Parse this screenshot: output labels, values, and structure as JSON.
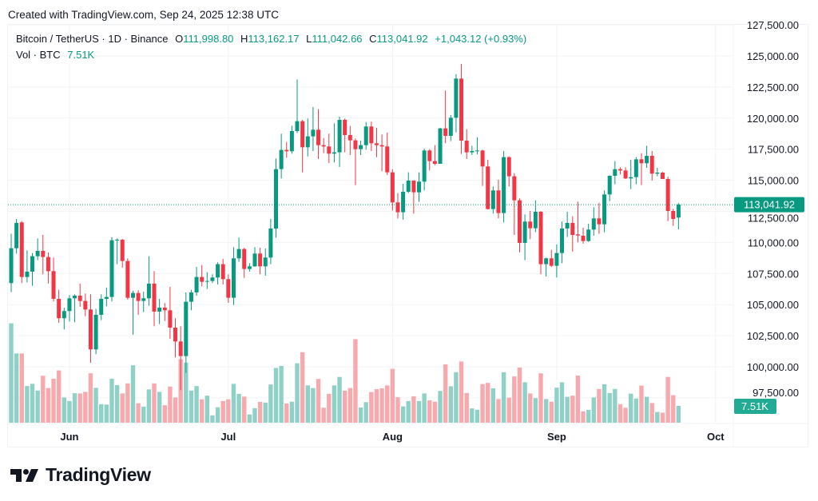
{
  "header": {
    "created": "Created with TradingView.com, Sep 24, 2025 12:38 UTC",
    "symbol": "Bitcoin / TetherUS · 1D · Binance",
    "open_label": "O",
    "open": "111,998.80",
    "high_label": "H",
    "high": "113,162.17",
    "low_label": "L",
    "low": "111,042.66",
    "close_label": "C",
    "close": "113,041.92",
    "change": "+1,043.12 (+0.93%)",
    "vol_label": "Vol · BTC",
    "vol": "7.51K"
  },
  "logo": {
    "text": "TradingView"
  },
  "colors": {
    "up": "#089981",
    "down": "#F23645",
    "up_volume": "#8fd1c6",
    "down_volume": "#f7a9ad",
    "text": "#131722",
    "grid": "#f2f3f5"
  },
  "chart_data": {
    "type": "candlestick",
    "title": "",
    "y_axis": {
      "position": "right",
      "range": [
        96500,
        127500
      ],
      "ticks": [
        "127,500.00",
        "125,000.00",
        "122,500.00",
        "120,000.00",
        "117,500.00",
        "115,000.00",
        "112,500.00",
        "110,000.00",
        "107,500.00",
        "105,000.00",
        "102,500.00",
        "100,000.00",
        "97,500.00"
      ],
      "tick_values": [
        127500,
        125000,
        122500,
        120000,
        117500,
        115000,
        112500,
        110000,
        107500,
        105000,
        102500,
        100000,
        97500
      ]
    },
    "x_axis": {
      "ticks": [
        {
          "label": "Jun",
          "date": "2025-06-01"
        },
        {
          "label": "Jul",
          "date": "2025-07-01"
        },
        {
          "label": "Aug",
          "date": "2025-08-01"
        },
        {
          "label": "Sep",
          "date": "2025-09-01"
        },
        {
          "label": "Oct",
          "date": "2025-10-01"
        }
      ]
    },
    "grid": true,
    "last_price_label": "113,041.92",
    "last_volume_label": "7.51K",
    "volume_unit": "K BTC",
    "columns": [
      "date",
      "open",
      "high",
      "low",
      "close",
      "volume"
    ],
    "candles": [
      [
        "2025-05-21",
        106728,
        110712,
        106000,
        109534,
        44.5
      ],
      [
        "2025-05-22",
        109534,
        111890,
        109106,
        111569,
        31.0
      ],
      [
        "2025-05-23",
        111612,
        111719,
        106728,
        107221,
        31.0
      ],
      [
        "2025-05-24",
        107221,
        109363,
        106793,
        107650,
        16.4
      ],
      [
        "2025-05-25",
        107650,
        109149,
        106514,
        108892,
        17.4
      ],
      [
        "2025-05-26",
        108892,
        110327,
        108571,
        109320,
        14.4
      ],
      [
        "2025-05-27",
        109320,
        110606,
        107436,
        108828,
        21.0
      ],
      [
        "2025-05-28",
        108828,
        109192,
        106686,
        107693,
        15.5
      ],
      [
        "2025-05-29",
        107693,
        108785,
        105250,
        105465,
        19.7
      ],
      [
        "2025-05-30",
        105465,
        106193,
        103536,
        103901,
        23.4
      ],
      [
        "2025-05-31",
        103901,
        104757,
        103001,
        104479,
        11.3
      ],
      [
        "2025-06-01",
        104479,
        105764,
        103644,
        105507,
        9.7
      ],
      [
        "2025-06-02",
        105507,
        105829,
        103579,
        105721,
        13.2
      ],
      [
        "2025-06-03",
        105721,
        106686,
        104822,
        105293,
        13.1
      ],
      [
        "2025-06-04",
        105293,
        105893,
        104072,
        104607,
        13.8
      ],
      [
        "2025-06-05",
        104607,
        105829,
        100324,
        101395,
        22.1
      ],
      [
        "2025-06-06",
        101395,
        104650,
        101009,
        104179,
        15.6
      ],
      [
        "2025-06-07",
        104179,
        105829,
        103751,
        105465,
        8.3
      ],
      [
        "2025-06-08",
        105465,
        106364,
        104865,
        105614,
        8.1
      ],
      [
        "2025-06-09",
        105614,
        110434,
        105250,
        110177,
        19.7
      ],
      [
        "2025-06-10",
        110177,
        110327,
        108250,
        110220,
        16.8
      ],
      [
        "2025-06-11",
        110220,
        110284,
        107971,
        108506,
        13.1
      ],
      [
        "2025-06-12",
        108506,
        108721,
        105400,
        105550,
        17.6
      ],
      [
        "2025-06-13",
        105550,
        106107,
        102573,
        105936,
        25.7
      ],
      [
        "2025-06-14",
        105936,
        106150,
        104179,
        105293,
        8.7
      ],
      [
        "2025-06-15",
        105293,
        106043,
        104393,
        105507,
        7.2
      ],
      [
        "2025-06-16",
        105507,
        108892,
        104907,
        106686,
        14.9
      ],
      [
        "2025-06-17",
        106686,
        107693,
        103258,
        104436,
        17.6
      ],
      [
        "2025-06-18",
        104436,
        105465,
        103430,
        104757,
        13.8
      ],
      [
        "2025-06-19",
        104757,
        105122,
        103687,
        104543,
        7.8
      ],
      [
        "2025-06-20",
        104543,
        106428,
        102251,
        103151,
        16.2
      ],
      [
        "2025-06-21",
        103151,
        103901,
        100752,
        102037,
        11.3
      ],
      [
        "2025-06-22",
        102037,
        103258,
        98117,
        100860,
        28.4
      ],
      [
        "2025-06-23",
        100860,
        105979,
        99510,
        105229,
        26.9
      ],
      [
        "2025-06-24",
        105229,
        106193,
        104543,
        105979,
        14.4
      ],
      [
        "2025-06-25",
        105979,
        108035,
        105722,
        107221,
        16.4
      ],
      [
        "2025-06-26",
        107221,
        108185,
        106471,
        106835,
        10.5
      ],
      [
        "2025-06-27",
        106835,
        107607,
        106257,
        106900,
        12.1
      ],
      [
        "2025-06-28",
        106900,
        107436,
        106728,
        107178,
        3.3
      ],
      [
        "2025-06-29",
        107178,
        108400,
        106621,
        108250,
        6.9
      ],
      [
        "2025-06-30",
        108250,
        108678,
        106621,
        107050,
        9.7
      ],
      [
        "2025-07-01",
        107050,
        107436,
        105143,
        105550,
        10.5
      ],
      [
        "2025-07-02",
        105550,
        109620,
        104971,
        108721,
        17.4
      ],
      [
        "2025-07-03",
        108721,
        110392,
        108442,
        109470,
        12.9
      ],
      [
        "2025-07-04",
        109470,
        109577,
        107157,
        107864,
        11.7
      ],
      [
        "2025-07-05",
        107864,
        108335,
        107650,
        108078,
        3.7
      ],
      [
        "2025-07-06",
        108078,
        109620,
        108035,
        109106,
        6.5
      ],
      [
        "2025-07-07",
        109106,
        109577,
        107436,
        108078,
        9.3
      ],
      [
        "2025-07-08",
        108078,
        109513,
        107328,
        108785,
        9.0
      ],
      [
        "2025-07-09",
        108785,
        111890,
        108250,
        111119,
        17.1
      ],
      [
        "2025-07-10",
        111119,
        116753,
        110391,
        115896,
        24.5
      ],
      [
        "2025-07-11",
        115896,
        118745,
        115147,
        117439,
        25.4
      ],
      [
        "2025-07-12",
        117439,
        118081,
        116817,
        117332,
        8.6
      ],
      [
        "2025-07-13",
        117332,
        119388,
        117139,
        118960,
        9.4
      ],
      [
        "2025-07-14",
        118960,
        123115,
        118788,
        119752,
        26.6
      ],
      [
        "2025-07-15",
        119752,
        119859,
        115640,
        117653,
        31.5
      ],
      [
        "2025-07-16",
        117653,
        119966,
        116925,
        118531,
        16.7
      ],
      [
        "2025-07-17",
        118531,
        120887,
        117353,
        119067,
        15.5
      ],
      [
        "2025-07-18",
        119067,
        120716,
        116711,
        117824,
        19.6
      ],
      [
        "2025-07-19",
        117824,
        118403,
        117182,
        117717,
        6.7
      ],
      [
        "2025-07-20",
        117717,
        118745,
        116389,
        117139,
        12.9
      ],
      [
        "2025-07-21",
        117139,
        119581,
        116432,
        117246,
        16.7
      ],
      [
        "2025-07-22",
        117246,
        120116,
        116068,
        119859,
        20.5
      ],
      [
        "2025-07-23",
        119859,
        119966,
        117246,
        118638,
        14.3
      ],
      [
        "2025-07-24",
        118638,
        119366,
        117032,
        118210,
        15.5
      ],
      [
        "2025-07-25",
        118210,
        118360,
        114611,
        117503,
        37.4
      ],
      [
        "2025-07-26",
        117503,
        118188,
        117032,
        117824,
        6.8
      ],
      [
        "2025-07-27",
        117824,
        119688,
        117460,
        119324,
        9.2
      ],
      [
        "2025-07-28",
        119324,
        119709,
        117353,
        117974,
        13.7
      ],
      [
        "2025-07-29",
        117974,
        119217,
        116860,
        117824,
        15.0
      ],
      [
        "2025-07-30",
        117824,
        118681,
        115725,
        117717,
        15.4
      ],
      [
        "2025-07-31",
        117717,
        118831,
        115425,
        115640,
        16.7
      ],
      [
        "2025-08-01",
        115640,
        115896,
        112576,
        113219,
        24.1
      ],
      [
        "2025-08-02",
        113219,
        113969,
        111934,
        112427,
        11.4
      ],
      [
        "2025-08-03",
        112427,
        114718,
        111827,
        114076,
        7.3
      ],
      [
        "2025-08-04",
        114076,
        115640,
        113969,
        114975,
        9.7
      ],
      [
        "2025-08-05",
        114975,
        114997,
        112319,
        114033,
        11.8
      ],
      [
        "2025-08-06",
        114033,
        115640,
        113262,
        114890,
        9.7
      ],
      [
        "2025-08-07",
        114890,
        117546,
        114183,
        117396,
        13.1
      ],
      [
        "2025-08-08",
        117396,
        117503,
        115789,
        116539,
        10.0
      ],
      [
        "2025-08-09",
        116539,
        117824,
        116218,
        116325,
        9.4
      ],
      [
        "2025-08-10",
        116325,
        119217,
        116325,
        119174,
        14.2
      ],
      [
        "2025-08-11",
        119174,
        122215,
        117974,
        118574,
        26.1
      ],
      [
        "2025-08-12",
        118574,
        120245,
        118146,
        120030,
        16.3
      ],
      [
        "2025-08-13",
        120030,
        123543,
        118853,
        123179,
        22.6
      ],
      [
        "2025-08-14",
        123179,
        124357,
        117117,
        118189,
        27.4
      ],
      [
        "2025-08-15",
        118189,
        119109,
        116711,
        117246,
        13.3
      ],
      [
        "2025-08-16",
        117246,
        117782,
        117032,
        117353,
        6.4
      ],
      [
        "2025-08-17",
        117353,
        118467,
        117075,
        117396,
        5.8
      ],
      [
        "2025-08-18",
        117396,
        117460,
        114547,
        116111,
        17.3
      ],
      [
        "2025-08-19",
        116111,
        116646,
        112641,
        112684,
        17.8
      ],
      [
        "2025-08-20",
        112684,
        114504,
        112319,
        114183,
        15.4
      ],
      [
        "2025-08-21",
        114183,
        115040,
        111934,
        112362,
        10.6
      ],
      [
        "2025-08-22",
        112362,
        117353,
        111612,
        116860,
        22.6
      ],
      [
        "2025-08-23",
        116860,
        116925,
        114504,
        115318,
        11.2
      ],
      [
        "2025-08-24",
        115318,
        115575,
        110606,
        113390,
        20.7
      ],
      [
        "2025-08-25",
        113390,
        113540,
        109213,
        109963,
        24.7
      ],
      [
        "2025-08-26",
        109963,
        112255,
        108571,
        111677,
        18.1
      ],
      [
        "2025-08-27",
        111677,
        112534,
        110263,
        111141,
        13.1
      ],
      [
        "2025-08-28",
        111141,
        113390,
        110820,
        112470,
        11.0
      ],
      [
        "2025-08-29",
        112470,
        112512,
        107436,
        108250,
        22.1
      ],
      [
        "2025-08-30",
        108250,
        108785,
        107264,
        108721,
        10.6
      ],
      [
        "2025-08-31",
        108720,
        109405,
        108035,
        108120,
        9.4
      ],
      [
        "2025-09-01",
        108120,
        109833,
        107178,
        109148,
        15.7
      ],
      [
        "2025-09-02",
        109148,
        111676,
        108334,
        111119,
        18.1
      ],
      [
        "2025-09-03",
        111119,
        112468,
        110433,
        111568,
        11.6
      ],
      [
        "2025-09-04",
        111568,
        112104,
        109255,
        110604,
        12.1
      ],
      [
        "2025-09-05",
        110647,
        113282,
        110005,
        110560,
        21.1
      ],
      [
        "2025-09-06",
        110540,
        111183,
        109898,
        110112,
        5.1
      ],
      [
        "2025-09-07",
        110112,
        111504,
        110048,
        111033,
        5.7
      ],
      [
        "2025-09-08",
        111033,
        112833,
        110540,
        111933,
        11.3
      ],
      [
        "2025-09-09",
        111933,
        113175,
        110690,
        111461,
        15.1
      ],
      [
        "2025-09-10",
        111461,
        114182,
        110819,
        113860,
        17.2
      ],
      [
        "2025-09-11",
        113860,
        115402,
        113325,
        115359,
        13.3
      ],
      [
        "2025-09-12",
        115359,
        116538,
        114674,
        115895,
        15.1
      ],
      [
        "2025-09-13",
        115895,
        116045,
        115467,
        115788,
        8.3
      ],
      [
        "2025-09-14",
        115788,
        116045,
        115103,
        115146,
        6.7
      ],
      [
        "2025-09-15",
        115146,
        116645,
        114289,
        115253,
        13.0
      ],
      [
        "2025-09-16",
        115253,
        116859,
        114674,
        116688,
        10.8
      ],
      [
        "2025-09-17",
        116688,
        117180,
        114610,
        116367,
        16.6
      ],
      [
        "2025-09-18",
        116367,
        117780,
        116002,
        116966,
        11.6
      ],
      [
        "2025-09-19",
        116966,
        117352,
        114974,
        115531,
        8.8
      ],
      [
        "2025-09-20",
        115531,
        116002,
        115317,
        115617,
        4.8
      ],
      [
        "2025-09-21",
        115617,
        115660,
        115103,
        115103,
        4.5
      ],
      [
        "2025-09-22",
        115103,
        115295,
        111718,
        112532,
        20.5
      ],
      [
        "2025-09-23",
        112532,
        112700,
        111333,
        111890,
        12.3
      ],
      [
        "2025-09-24",
        111998.8,
        113162.17,
        111042.66,
        113041.92,
        7.51
      ]
    ]
  }
}
